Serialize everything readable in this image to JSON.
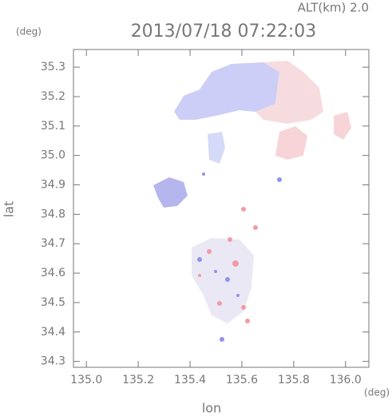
{
  "chart_data": {
    "type": "field",
    "title": "2013/07/18 07:22:03",
    "subtitle": "ALT(km) 2.0",
    "x_label": "lon",
    "x_unit": "(deg)",
    "y_label": "lat",
    "y_unit": "(deg)",
    "xlim": [
      134.95,
      136.09
    ],
    "xticks": [
      {
        "value": 135.0,
        "label": "135.0"
      },
      135.2,
      135.4,
      135.6,
      135.8,
      {
        "value": 136.0,
        "label": "136.0"
      }
    ],
    "ylim": [
      34.28,
      35.36
    ],
    "yticks": [
      34.3,
      34.4,
      34.5,
      34.6,
      34.7,
      34.8,
      34.9,
      {
        "value": 35.0,
        "label": "35.0"
      },
      35.1,
      35.2,
      35.3
    ]
  }
}
